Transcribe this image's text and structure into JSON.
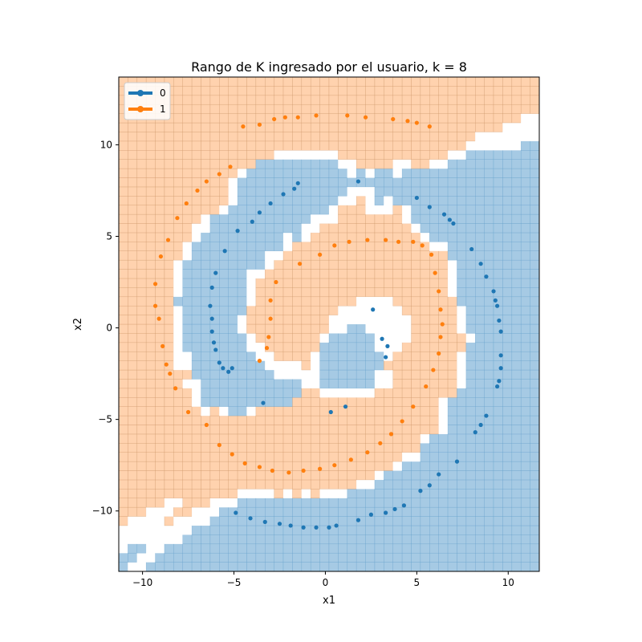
{
  "chart_data": {
    "type": "scatter",
    "title": "Rango de K ingresado por el usuario, k = 8",
    "xlabel": "x1",
    "ylabel": "x2",
    "xlim": [
      -11.3,
      11.7
    ],
    "ylim": [
      -13.3,
      13.7
    ],
    "xticks": [
      -10,
      -5,
      0,
      5,
      10
    ],
    "yticks": [
      -10,
      -5,
      0,
      5,
      10
    ],
    "xtick_labels": [
      "−10",
      "−5",
      "0",
      "5",
      "10"
    ],
    "ytick_labels": [
      "−10",
      "−5",
      "0",
      "5",
      "10"
    ],
    "grid": false,
    "background": "k-NN decision regions over a ~0.5-unit mesh grid (class 0 region light blue, class 1 region light orange)",
    "legend": {
      "placement": "top-left",
      "entries": [
        {
          "label": "0",
          "color": "#1f77b4"
        },
        {
          "label": "1",
          "color": "#ff7f0e"
        }
      ]
    },
    "colors": {
      "class0": "#1f77b4",
      "class1": "#ff7f0e",
      "region0": "#a6cae4",
      "region1": "#ffd2ae"
    },
    "series": [
      {
        "name": "0",
        "color": "#1f77b4",
        "x": [
          -2.3,
          -1.7,
          -1.5,
          -3.0,
          -3.6,
          -4.0,
          -4.8,
          -5.5,
          -6.0,
          -6.2,
          -6.3,
          -6.2,
          -6.2,
          -6.1,
          -6.0,
          -5.8,
          -5.6,
          -5.3,
          -5.1,
          -3.4,
          0.3,
          1.1,
          3.1,
          3.4,
          3.3,
          2.6,
          1.8,
          5.0,
          5.7,
          6.5,
          6.8,
          7.0,
          8.0,
          8.5,
          8.8,
          9.2,
          9.3,
          9.4,
          9.5,
          9.6,
          9.6,
          9.6,
          9.5,
          9.4,
          8.8,
          8.5,
          8.2,
          7.2,
          6.2,
          5.7,
          5.2,
          4.3,
          3.8,
          3.3,
          2.5,
          1.8,
          0.6,
          0.2,
          -0.5,
          -1.2,
          -1.9,
          -2.5,
          -3.3,
          -4.1,
          -4.9
        ],
        "y": [
          7.3,
          7.6,
          7.9,
          6.8,
          6.3,
          5.8,
          5.3,
          4.2,
          3.0,
          2.2,
          1.2,
          0.5,
          -0.2,
          -0.8,
          -1.2,
          -1.9,
          -2.2,
          -2.4,
          -2.2,
          -4.1,
          -4.6,
          -4.3,
          -0.6,
          -1.0,
          -1.6,
          1.0,
          8.0,
          7.1,
          6.6,
          6.2,
          5.9,
          5.7,
          4.3,
          3.5,
          2.8,
          2.0,
          1.5,
          1.2,
          0.4,
          -0.2,
          -1.5,
          -2.2,
          -2.9,
          -3.2,
          -4.8,
          -5.3,
          -5.7,
          -7.3,
          -8.0,
          -8.6,
          -8.9,
          -9.7,
          -9.9,
          -10.1,
          -10.2,
          -10.5,
          -10.8,
          -10.9,
          -10.9,
          -10.9,
          -10.8,
          -10.7,
          -10.6,
          -10.4,
          -10.1
        ]
      },
      {
        "name": "1",
        "color": "#ff7f0e",
        "x": [
          -4.5,
          -3.6,
          -2.8,
          -2.2,
          -1.5,
          -0.5,
          1.2,
          2.2,
          3.7,
          4.5,
          5.0,
          5.7,
          -5.2,
          -5.8,
          -6.5,
          -7.0,
          -7.6,
          -8.1,
          -8.6,
          -9.0,
          -9.3,
          -9.3,
          -9.1,
          -8.9,
          -8.7,
          -8.5,
          -8.2,
          -7.5,
          -6.5,
          -5.8,
          -5.1,
          -4.4,
          -3.6,
          -2.9,
          -2.0,
          -1.2,
          -0.3,
          0.5,
          1.4,
          2.3,
          3.0,
          3.6,
          4.2,
          4.8,
          5.5,
          5.9,
          6.2,
          6.3,
          6.4,
          6.3,
          6.2,
          6.0,
          5.8,
          5.3,
          4.8,
          4.0,
          3.3,
          2.3,
          1.3,
          0.5,
          -0.3,
          -1.4,
          -2.7,
          -3.0,
          -3.0,
          -3.1,
          -3.2,
          -3.6
        ],
        "y": [
          11.0,
          11.1,
          11.4,
          11.5,
          11.5,
          11.6,
          11.6,
          11.5,
          11.4,
          11.3,
          11.2,
          11.0,
          8.8,
          8.4,
          8.0,
          7.5,
          6.8,
          6.0,
          4.8,
          3.9,
          2.4,
          1.2,
          0.5,
          -1.0,
          -2.0,
          -2.5,
          -3.3,
          -4.6,
          -5.3,
          -6.4,
          -6.9,
          -7.4,
          -7.6,
          -7.8,
          -7.9,
          -7.8,
          -7.7,
          -7.5,
          -7.2,
          -6.8,
          -6.3,
          -5.8,
          -5.1,
          -4.3,
          -3.2,
          -2.3,
          -1.4,
          -0.5,
          0.2,
          1.0,
          2.0,
          3.0,
          4.0,
          4.5,
          4.7,
          4.7,
          4.8,
          4.8,
          4.7,
          4.5,
          4.0,
          3.5,
          2.5,
          1.5,
          0.5,
          -0.5,
          -1.1,
          -1.8
        ]
      }
    ]
  }
}
